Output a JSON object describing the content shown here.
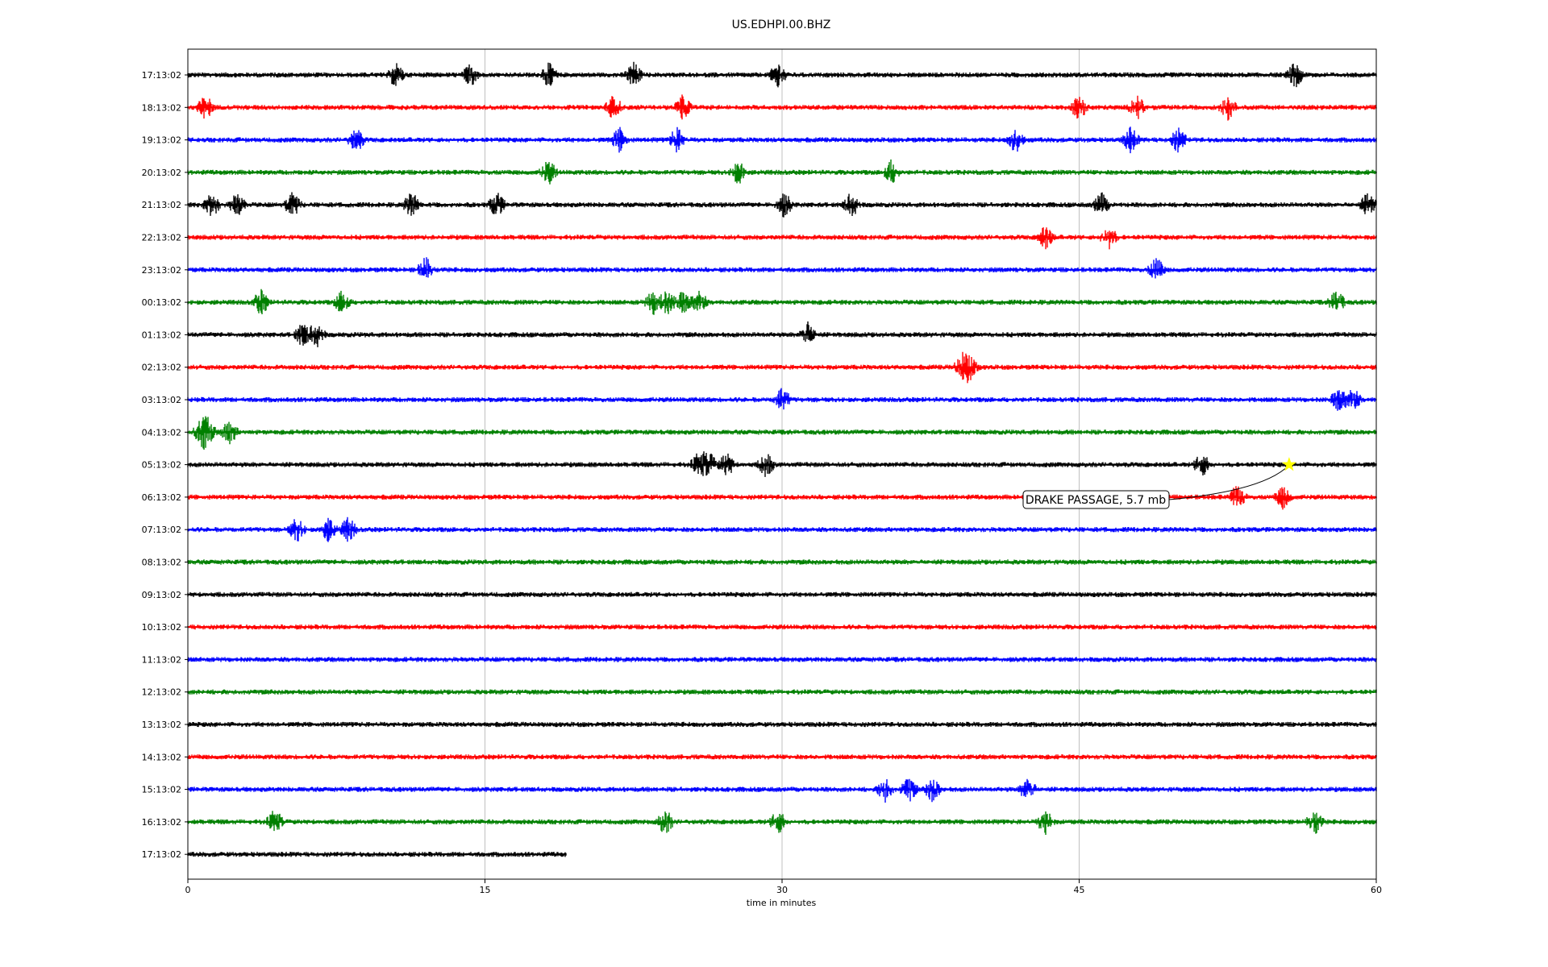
{
  "chart_data": {
    "type": "line",
    "title": "US.EDHPI.00.BHZ",
    "xlabel": "time in minutes",
    "ylabel": "",
    "xlim": [
      0,
      60
    ],
    "x_ticks": [
      "0",
      "15",
      "30",
      "45",
      "60"
    ],
    "x_tick_values": [
      0,
      15,
      30,
      45,
      60
    ],
    "grid": "vertical lines at x ticks",
    "row_colors": [
      "#000000",
      "#ff0000",
      "#0000ff",
      "#008000"
    ],
    "row_labels": [
      "17:13:02",
      "18:13:02",
      "19:13:02",
      "20:13:02",
      "21:13:02",
      "22:13:02",
      "23:13:02",
      "00:13:02",
      "01:13:02",
      "02:13:02",
      "03:13:02",
      "04:13:02",
      "05:13:02",
      "06:13:02",
      "07:13:02",
      "08:13:02",
      "09:13:02",
      "10:13:02",
      "11:13:02",
      "12:13:02",
      "13:13:02",
      "14:13:02",
      "15:13:02",
      "16:13:02",
      "17:13:02"
    ],
    "last_row_end_minutes": 19.1,
    "events": [
      {
        "row": 0,
        "minutes": [
          10.5,
          14.3,
          18.2,
          22.5,
          29.8,
          55.9
        ]
      },
      {
        "row": 1,
        "minutes": [
          0.9,
          21.5,
          25,
          45,
          47.9,
          52.5
        ]
      },
      {
        "row": 2,
        "minutes": [
          8.5,
          21.8,
          24.7,
          41.8,
          47.6,
          50
        ]
      },
      {
        "row": 3,
        "minutes": [
          18.2,
          27.8,
          35.5
        ]
      },
      {
        "row": 4,
        "minutes": [
          1.2,
          2.5,
          5.3,
          11.3,
          15.6,
          30.1,
          33.5,
          46.1,
          59.6
        ]
      },
      {
        "row": 5,
        "minutes": [
          43.3,
          46.5
        ]
      },
      {
        "row": 6,
        "minutes": [
          12,
          48.9
        ]
      },
      {
        "row": 7,
        "minutes": [
          3.7,
          7.8,
          23.5,
          24.2,
          25,
          25.8,
          58
        ]
      },
      {
        "row": 8,
        "minutes": [
          5.8,
          6.5,
          31.3
        ]
      },
      {
        "row": 9,
        "minutes": [
          39.1,
          39.5
        ]
      },
      {
        "row": 10,
        "minutes": [
          30,
          58.1,
          58.8
        ]
      },
      {
        "row": 11,
        "minutes": [
          0.7,
          1,
          2.1
        ]
      },
      {
        "row": 12,
        "minutes": [
          25.8,
          26.3,
          27.2,
          29.2,
          51.2
        ]
      },
      {
        "row": 13,
        "minutes": [
          53,
          55.3
        ]
      },
      {
        "row": 14,
        "minutes": [
          5.5,
          7.1,
          8.1
        ]
      },
      {
        "row": 22,
        "minutes": [
          35.2,
          36.4,
          37.6,
          42.4
        ]
      },
      {
        "row": 23,
        "minutes": [
          4.4,
          24.1,
          29.8,
          43.3,
          56.9
        ]
      }
    ],
    "annotation": {
      "label": "DRAKE PASSAGE, 5.7 mb",
      "row": 12,
      "minutes": 55.6,
      "marker_color": "#ffff00"
    }
  }
}
